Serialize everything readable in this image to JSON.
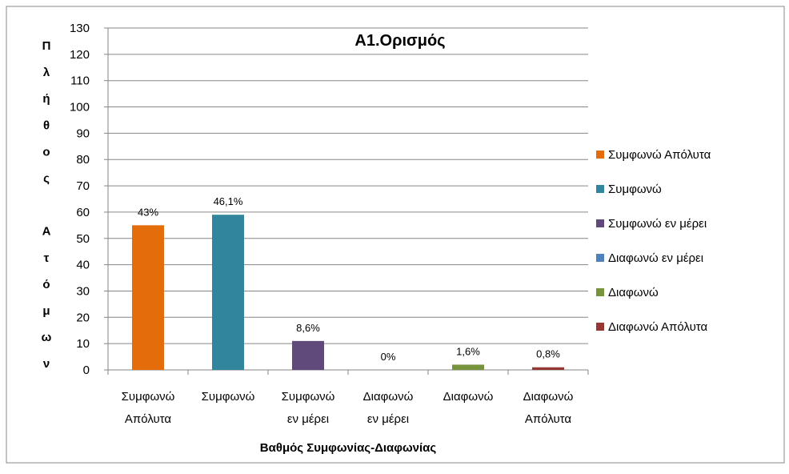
{
  "chart_data": {
    "type": "bar",
    "title": "Α1.Ορισμός",
    "xlabel": "Βαθμός Συμφωνίας-Διαφωνίας",
    "ylabel": "Πλήθος Ατόμων",
    "categories": [
      "Συμφωνώ Απόλυτα",
      "Συμφωνώ",
      "Συμφωνώ εν μέρει",
      "Διαφωνώ εν μέρει",
      "Διαφωνώ",
      "Διαφωνώ Απόλυτα"
    ],
    "values": [
      55,
      59,
      11,
      0,
      2,
      1
    ],
    "percent_labels": [
      "43%",
      "46,1%",
      "8,6%",
      "0%",
      "1,6%",
      "0,8%"
    ],
    "colors": [
      "#e46c0a",
      "#31859c",
      "#604a7b",
      "#4f81bd",
      "#77933c",
      "#953735"
    ],
    "ylim": [
      0,
      130
    ],
    "yticks": [
      0,
      10,
      20,
      30,
      40,
      50,
      60,
      70,
      80,
      90,
      100,
      110,
      120,
      130
    ],
    "grid": true,
    "legend": "right"
  }
}
